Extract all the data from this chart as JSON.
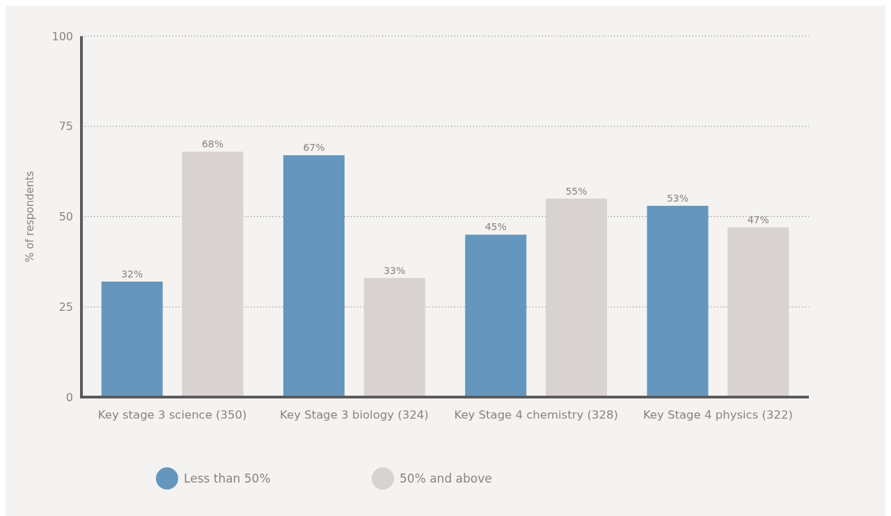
{
  "chart_data": {
    "type": "bar",
    "ylabel": "% of respondents",
    "categories": [
      "Key stage 3 science (350)",
      "Key Stage 3 biology (324)",
      "Key Stage 4 chemistry (328)",
      "Key Stage 4 physics (322)"
    ],
    "series": [
      {
        "name": "Less than 50%",
        "color": "#6597be",
        "values": [
          32,
          67,
          45,
          53
        ],
        "value_labels": [
          "32%",
          "67%",
          "45%",
          "53%"
        ]
      },
      {
        "name": "50% and above",
        "color": "#d8d3d2",
        "values": [
          68,
          33,
          55,
          47
        ],
        "value_labels": [
          "68%",
          "33%",
          "55%",
          "47%"
        ]
      }
    ],
    "ylim": [
      0,
      100
    ],
    "yticks": [
      0,
      25,
      50,
      75,
      100
    ],
    "grid": "y",
    "legend": "bottom"
  }
}
